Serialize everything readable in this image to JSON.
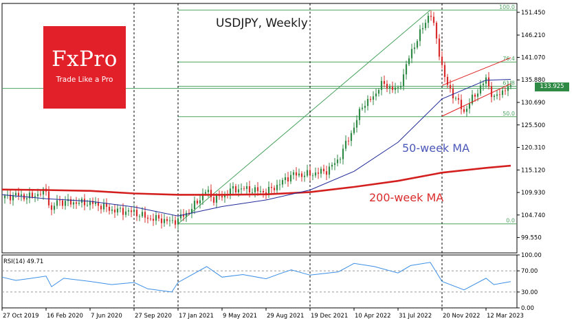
{
  "chart_data": [
    {
      "type": "candlestick",
      "title": "USDJPY, Weekly",
      "ylim": [
        96.0,
        153.5
      ],
      "y_ticks": [
        "151.450",
        "146.210",
        "141.070",
        "135.880",
        "130.690",
        "125.500",
        "120.310",
        "115.120",
        "109.930",
        "104.740",
        "99.550"
      ],
      "x_ticks": [
        "27 Oct 2019",
        "16 Feb 2020",
        "7 Jun 2020",
        "27 Sep 2020",
        "17 Jan 2021",
        "9 May 2021",
        "29 Aug 2021",
        "19 Dec 2021",
        "10 Apr 2022",
        "31 Jul 2022",
        "20 Nov 2022",
        "12 Mar 2023"
      ],
      "vertical_markers": [
        "27 Oct 2019",
        "27 Sep 2020",
        "17 Jan 2021",
        "19 Dec 2021",
        "20 Nov 2022"
      ],
      "current_price": "133.925",
      "close_path": [
        [
          "27 Oct 2019",
          108.6
        ],
        [
          "1 Dec 2019",
          109.4
        ],
        [
          "1 Jan 2020",
          108.8
        ],
        [
          "16 Feb 2020",
          110.2
        ],
        [
          "1 Mar 2020",
          105.5
        ],
        [
          "15 Mar 2020",
          108.0
        ],
        [
          "1 Apr 2020",
          107.7
        ],
        [
          "7 Jun 2020",
          107.5
        ],
        [
          "1 Jul 2020",
          107.0
        ],
        [
          "1 Aug 2020",
          105.9
        ],
        [
          "27 Sep 2020",
          105.4
        ],
        [
          "1 Nov 2020",
          104.0
        ],
        [
          "1 Dec 2020",
          103.8
        ],
        [
          "1 Jan 2021",
          103.1
        ],
        [
          "17 Jan 2021",
          103.8
        ],
        [
          "15 Feb 2021",
          105.6
        ],
        [
          "31 Mar 2021",
          110.5
        ],
        [
          "15 Apr 2021",
          108.4
        ],
        [
          "9 May 2021",
          109.0
        ],
        [
          "1 Jun 2021",
          110.6
        ],
        [
          "1 Jul 2021",
          110.8
        ],
        [
          "29 Aug 2021",
          110.0
        ],
        [
          "1 Oct 2021",
          111.8
        ],
        [
          "1 Nov 2021",
          114.0
        ],
        [
          "19 Dec 2021",
          114.1
        ],
        [
          "1 Feb 2022",
          115.0
        ],
        [
          "1 Mar 2022",
          117.5
        ],
        [
          "10 Apr 2022",
          125.0
        ],
        [
          "1 May 2022",
          130.0
        ],
        [
          "1 Jun 2022",
          132.0
        ],
        [
          "15 Jun 2022",
          135.0
        ],
        [
          "31 Jul 2022",
          133.5
        ],
        [
          "1 Sep 2022",
          142.0
        ],
        [
          "21 Oct 2022",
          151.6
        ],
        [
          "1 Nov 2022",
          147.5
        ],
        [
          "20 Nov 2022",
          139.0
        ],
        [
          "1 Dec 2022",
          135.0
        ],
        [
          "15 Jan 2023",
          128.5
        ],
        [
          "1 Feb 2023",
          131.0
        ],
        [
          "12 Mar 2023",
          136.0
        ],
        [
          "1 Apr 2023",
          131.5
        ],
        [
          "1 May 2023",
          134.0
        ],
        [
          "14 May 2023",
          133.9
        ]
      ],
      "ma50": {
        "label": "50-week MA",
        "points": [
          [
            "27 Oct 2019",
            109.4
          ],
          [
            "16 Feb 2020",
            108.5
          ],
          [
            "7 Jun 2020",
            107.9
          ],
          [
            "27 Sep 2020",
            106.6
          ],
          [
            "17 Jan 2021",
            104.5
          ],
          [
            "9 May 2021",
            106.7
          ],
          [
            "29 Aug 2021",
            108.2
          ],
          [
            "19 Dec 2021",
            110.5
          ],
          [
            "10 Apr 2022",
            114.8
          ],
          [
            "31 Jul 2022",
            121.5
          ],
          [
            "20 Nov 2022",
            131.5
          ],
          [
            "12 Mar 2023",
            135.8
          ],
          [
            "14 May 2023",
            136.0
          ]
        ]
      },
      "ma200": {
        "label": "200-week MA",
        "points": [
          [
            "27 Oct 2019",
            110.6
          ],
          [
            "16 Feb 2020",
            110.5
          ],
          [
            "7 Jun 2020",
            110.3
          ],
          [
            "27 Sep 2020",
            109.7
          ],
          [
            "17 Jan 2021",
            109.4
          ],
          [
            "9 May 2021",
            109.4
          ],
          [
            "29 Aug 2021",
            109.5
          ],
          [
            "19 Dec 2021",
            110.0
          ],
          [
            "10 Apr 2022",
            111.2
          ],
          [
            "31 Jul 2022",
            112.6
          ],
          [
            "20 Nov 2022",
            114.5
          ],
          [
            "12 Mar 2023",
            115.6
          ],
          [
            "14 May 2023",
            116.1
          ]
        ]
      },
      "fibonacci": {
        "levels": [
          {
            "label": "100.0",
            "price": 151.95
          },
          {
            "label": "76.4",
            "price": 140.0
          },
          {
            "label": "61.8",
            "price": 134.4
          },
          {
            "label": "50.0",
            "price": 127.4
          },
          {
            "label": "0.0",
            "price": 102.7
          }
        ],
        "anchor_low": [
          "17 Jan 2021",
          102.7
        ],
        "anchor_high": [
          "21 Oct 2022",
          151.95
        ]
      },
      "channel": {
        "upper": [
          [
            "20 Nov 2022",
            134.6
          ],
          [
            "14 May 2023",
            141.0
          ]
        ],
        "lower": [
          [
            "20 Nov 2022",
            127.5
          ],
          [
            "14 May 2023",
            135.0
          ]
        ]
      },
      "colors": {
        "bull": "#2e8a44",
        "bear": "#d92b2b",
        "ma50": "#1f2a99",
        "ma200": "#d41f1f",
        "fib": "#4aa35f",
        "channel": "#e02020",
        "rsi": "#3b8ee6"
      }
    },
    {
      "type": "line",
      "title": "RSI(14) 49.71",
      "ylim": [
        0,
        100
      ],
      "y_ticks": [
        "100.00",
        "70.00",
        "30.00",
        "0.00"
      ],
      "levels": [
        70,
        30
      ],
      "series": [
        {
          "points": [
            [
              "27 Oct 2019",
              58
            ],
            [
              "1 Dec 2019",
              52
            ],
            [
              "1 Jan 2020",
              55
            ],
            [
              "16 Feb 2020",
              60
            ],
            [
              "1 Mar 2020",
              40
            ],
            [
              "1 Apr 2020",
              56
            ],
            [
              "7 Jun 2020",
              50
            ],
            [
              "1 Aug 2020",
              44
            ],
            [
              "27 Sep 2020",
              48
            ],
            [
              "1 Nov 2020",
              36
            ],
            [
              "1 Jan 2021",
              30
            ],
            [
              "17 Jan 2021",
              48
            ],
            [
              "31 Mar 2021",
              78
            ],
            [
              "9 May 2021",
              58
            ],
            [
              "1 Jul 2021",
              63
            ],
            [
              "29 Aug 2021",
              55
            ],
            [
              "1 Oct 2021",
              64
            ],
            [
              "1 Nov 2021",
              72
            ],
            [
              "19 Dec 2021",
              62
            ],
            [
              "1 Mar 2022",
              68
            ],
            [
              "10 Apr 2022",
              84
            ],
            [
              "1 Jun 2022",
              78
            ],
            [
              "31 Jul 2022",
              66
            ],
            [
              "1 Sep 2022",
              80
            ],
            [
              "21 Oct 2022",
              86
            ],
            [
              "20 Nov 2022",
              50
            ],
            [
              "15 Jan 2023",
              34
            ],
            [
              "12 Mar 2023",
              56
            ],
            [
              "1 Apr 2023",
              44
            ],
            [
              "14 May 2023",
              49.7
            ]
          ]
        }
      ]
    }
  ],
  "logo": {
    "name": "FxPro",
    "tagline": "Trade Like a Pro"
  }
}
